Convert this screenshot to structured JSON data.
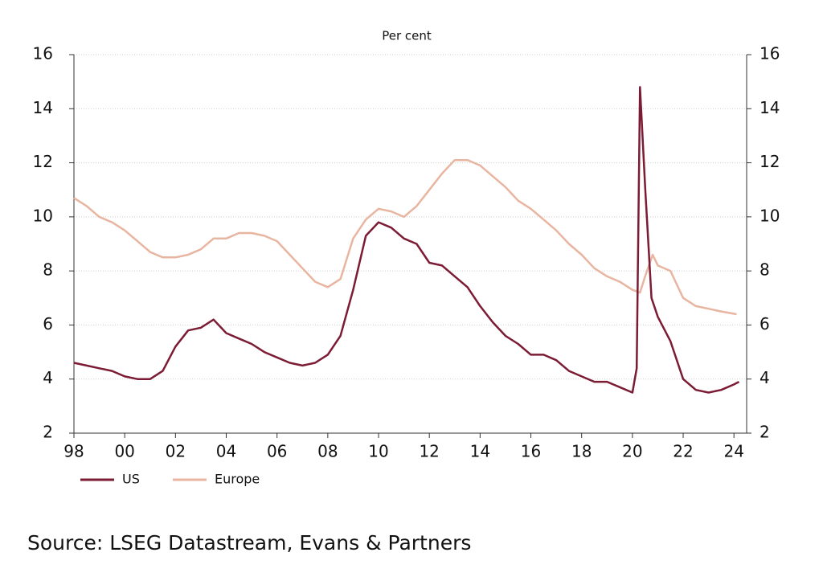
{
  "chart_data": {
    "type": "line",
    "subtitle": "Per cent",
    "source": "Source: LSEG Datastream, Evans & Partners",
    "xlim": [
      1998,
      2024.5
    ],
    "xticks": [
      {
        "value": 1998,
        "label": "98"
      },
      {
        "value": 2000,
        "label": "00"
      },
      {
        "value": 2002,
        "label": "02"
      },
      {
        "value": 2004,
        "label": "04"
      },
      {
        "value": 2006,
        "label": "06"
      },
      {
        "value": 2008,
        "label": "08"
      },
      {
        "value": 2010,
        "label": "10"
      },
      {
        "value": 2012,
        "label": "12"
      },
      {
        "value": 2014,
        "label": "14"
      },
      {
        "value": 2016,
        "label": "16"
      },
      {
        "value": 2018,
        "label": "18"
      },
      {
        "value": 2020,
        "label": "20"
      },
      {
        "value": 2022,
        "label": "22"
      },
      {
        "value": 2024,
        "label": "24"
      }
    ],
    "ylim": [
      2,
      16
    ],
    "yticks": [
      2,
      4,
      6,
      8,
      10,
      12,
      14,
      16
    ],
    "y2lim": [
      2,
      16
    ],
    "y2ticks": [
      2,
      4,
      6,
      8,
      10,
      12,
      14,
      16
    ],
    "grid": true,
    "series": [
      {
        "name": "US",
        "color": "#7b1b34",
        "x": [
          1998,
          1998.5,
          1999,
          1999.5,
          2000,
          2000.5,
          2001,
          2001.5,
          2002,
          2002.5,
          2003,
          2003.5,
          2004,
          2004.5,
          2005,
          2005.5,
          2006,
          2006.5,
          2007,
          2007.5,
          2008,
          2008.5,
          2009,
          2009.5,
          2010,
          2010.5,
          2011,
          2011.5,
          2012,
          2012.5,
          2013,
          2013.5,
          2014,
          2014.5,
          2015,
          2015.5,
          2016,
          2016.5,
          2017,
          2017.5,
          2018,
          2018.5,
          2019,
          2019.5,
          2020,
          2020.17,
          2020.3,
          2020.5,
          2020.75,
          2021,
          2021.5,
          2022,
          2022.5,
          2023,
          2023.5,
          2024,
          2024.2
        ],
        "values": [
          4.6,
          4.5,
          4.4,
          4.3,
          4.1,
          4.0,
          4.0,
          4.3,
          5.2,
          5.8,
          5.9,
          6.2,
          5.7,
          5.5,
          5.3,
          5.0,
          4.8,
          4.6,
          4.5,
          4.6,
          4.9,
          5.6,
          7.3,
          9.3,
          9.8,
          9.6,
          9.2,
          9.0,
          8.3,
          8.2,
          7.8,
          7.4,
          6.7,
          6.1,
          5.6,
          5.3,
          4.9,
          4.9,
          4.7,
          4.3,
          4.1,
          3.9,
          3.9,
          3.7,
          3.5,
          4.4,
          14.8,
          11.1,
          7.0,
          6.3,
          5.4,
          4.0,
          3.6,
          3.5,
          3.6,
          3.8,
          3.9
        ]
      },
      {
        "name": "Europe",
        "color": "#e8b5a0",
        "x": [
          1998,
          1998.5,
          1999,
          1999.5,
          2000,
          2000.5,
          2001,
          2001.5,
          2002,
          2002.5,
          2003,
          2003.5,
          2004,
          2004.5,
          2005,
          2005.5,
          2006,
          2006.5,
          2007,
          2007.5,
          2008,
          2008.5,
          2009,
          2009.5,
          2010,
          2010.5,
          2011,
          2011.5,
          2012,
          2012.5,
          2013,
          2013.5,
          2014,
          2014.5,
          2015,
          2015.5,
          2016,
          2016.5,
          2017,
          2017.5,
          2018,
          2018.5,
          2019,
          2019.5,
          2020,
          2020.3,
          2020.5,
          2020.8,
          2021,
          2021.5,
          2022,
          2022.5,
          2023,
          2023.5,
          2024.1
        ],
        "values": [
          10.7,
          10.4,
          10.0,
          9.8,
          9.5,
          9.1,
          8.7,
          8.5,
          8.5,
          8.6,
          8.8,
          9.2,
          9.2,
          9.4,
          9.4,
          9.3,
          9.1,
          8.6,
          8.1,
          7.6,
          7.4,
          7.7,
          9.2,
          9.9,
          10.3,
          10.2,
          10.0,
          10.4,
          11.0,
          11.6,
          12.1,
          12.1,
          11.9,
          11.5,
          11.1,
          10.6,
          10.3,
          9.9,
          9.5,
          9.0,
          8.6,
          8.1,
          7.8,
          7.6,
          7.3,
          7.2,
          7.8,
          8.6,
          8.2,
          8.0,
          7.0,
          6.7,
          6.6,
          6.5,
          6.4
        ]
      }
    ]
  }
}
